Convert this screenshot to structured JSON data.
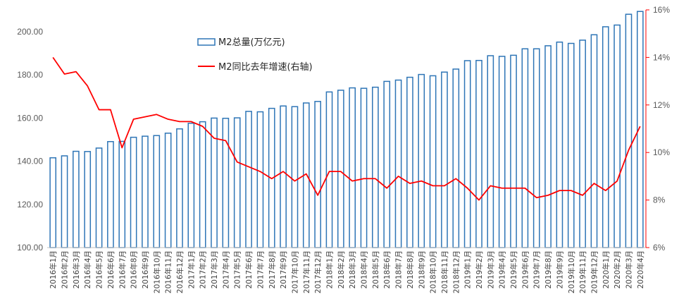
{
  "chart_data": {
    "type": "bar+line",
    "title": "",
    "xlabel": "",
    "ylabel": "",
    "categories": [
      "2016年1月",
      "2016年2月",
      "2016年3月",
      "2016年4月",
      "2016年5月",
      "2016年6月",
      "2016年7月",
      "2016年8月",
      "2016年9月",
      "2016年10月",
      "2016年11月",
      "2016年12月",
      "2017年1月",
      "2017年2月",
      "2017年3月",
      "2017年4月",
      "2017年5月",
      "2017年6月",
      "2017年7月",
      "2017年8月",
      "2017年9月",
      "2017年10月",
      "2017年11月",
      "2017年12月",
      "2018年1月",
      "2018年2月",
      "2018年3月",
      "2018年4月",
      "2018年5月",
      "2018年6月",
      "2018年7月",
      "2018年8月",
      "2018年9月",
      "2018年10月",
      "2018年11月",
      "2018年12月",
      "2019年1月",
      "2019年2月",
      "2019年3月",
      "2019年4月",
      "2019年5月",
      "2019年6月",
      "2019年7月",
      "2019年8月",
      "2019年9月",
      "2019年10月",
      "2019年11月",
      "2019年12月",
      "2020年1月",
      "2020年2月",
      "2020年3月",
      "2020年4月"
    ],
    "series": [
      {
        "name": "M2总量(万亿元)",
        "type": "bar",
        "axis": "left",
        "color": "#2e75b6",
        "values": [
          141.6,
          142.5,
          144.6,
          144.5,
          146.1,
          149.1,
          149.2,
          151.1,
          151.6,
          151.9,
          153.0,
          155.0,
          157.6,
          158.3,
          160.0,
          159.9,
          160.1,
          163.1,
          162.9,
          164.5,
          165.6,
          165.3,
          167.0,
          167.7,
          172.1,
          172.9,
          173.99,
          173.8,
          174.3,
          177.0,
          177.6,
          178.9,
          180.2,
          179.6,
          181.3,
          182.7,
          186.6,
          186.7,
          188.9,
          188.6,
          189.1,
          192.1,
          192.1,
          193.5,
          195.2,
          194.6,
          196.1,
          198.6,
          202.3,
          203.1,
          208.1,
          209.4
        ]
      },
      {
        "name": "M2同比去年增速(右轴)",
        "type": "line",
        "axis": "right",
        "color": "#ff0000",
        "values": [
          14.0,
          13.3,
          13.4,
          12.8,
          11.8,
          11.8,
          10.2,
          11.4,
          11.5,
          11.6,
          11.4,
          11.3,
          11.3,
          11.1,
          10.6,
          10.5,
          9.6,
          9.4,
          9.2,
          8.9,
          9.2,
          8.8,
          9.1,
          8.2,
          9.2,
          9.2,
          8.8,
          8.9,
          8.9,
          8.5,
          9.0,
          8.7,
          8.8,
          8.6,
          8.6,
          8.9,
          8.5,
          8.0,
          8.6,
          8.5,
          8.5,
          8.5,
          8.1,
          8.2,
          8.4,
          8.4,
          8.2,
          8.7,
          8.4,
          8.8,
          10.1,
          11.1
        ]
      }
    ],
    "y_left": {
      "min": 100,
      "max": 210,
      "ticks": [
        "100.00",
        "120.00",
        "140.00",
        "160.00",
        "180.00",
        "200.00"
      ],
      "tick_values": [
        100,
        120,
        140,
        160,
        180,
        200
      ]
    },
    "y_right": {
      "min": 6,
      "max": 16,
      "ticks": [
        "6%",
        "8%",
        "10%",
        "12%",
        "14%",
        "16%"
      ],
      "tick_values": [
        6,
        8,
        10,
        12,
        14,
        16
      ],
      "color": "#ff0000"
    },
    "grid": false,
    "legend": {
      "placement": "top-center",
      "items": [
        {
          "label": "M2总量(万亿元)",
          "symbol": "bar"
        },
        {
          "label": "M2同比去年增速(右轴)",
          "symbol": "line"
        }
      ]
    },
    "colors": {
      "bar_stroke": "#2e75b6",
      "bar_fill": "#ffffff",
      "line": "#ff0000",
      "axis_left": "#d9d9d9",
      "axis_right": "#ff0000"
    }
  }
}
